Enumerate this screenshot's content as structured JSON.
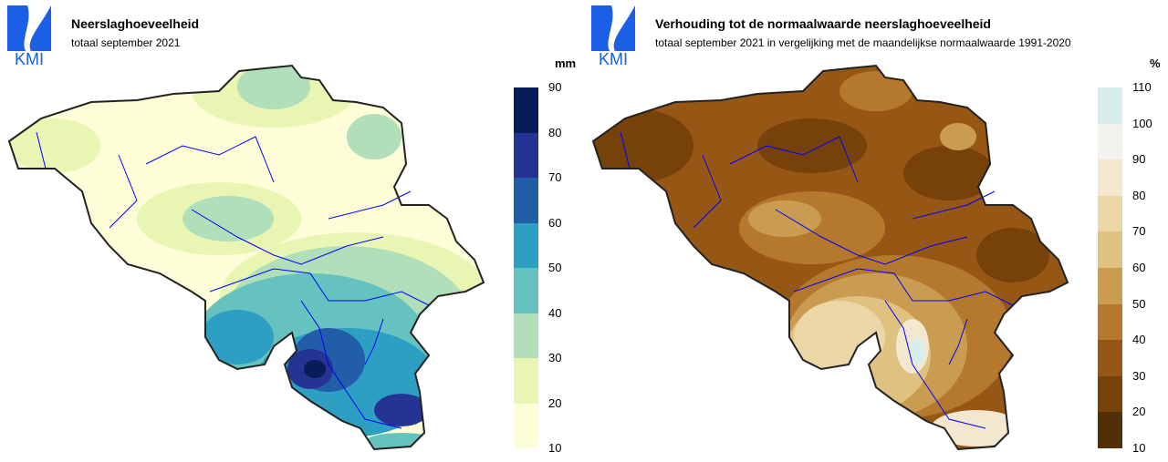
{
  "logo_text": "KMI",
  "left": {
    "title": "Neerslaghoeveelheid",
    "subtitle": "totaal september 2021",
    "unit": "mm",
    "legend": {
      "ticks": [
        "90",
        "80",
        "70",
        "60",
        "50",
        "40",
        "30",
        "20",
        "10"
      ],
      "colors": [
        "#081d58",
        "#253494",
        "#225ea8",
        "#2c9fc2",
        "#65c2bf",
        "#b1dfb9",
        "#e9f5b3",
        "#fdfed7"
      ]
    }
  },
  "right": {
    "title": "Verhouding tot de normaalwaarde neerslaghoeveelheid",
    "subtitle": "totaal september 2021 in vergelijking met de maandelijkse normaalwaarde 1991-2020",
    "unit": "%",
    "legend": {
      "ticks": [
        "110",
        "100",
        "90",
        "80",
        "70",
        "60",
        "50",
        "40",
        "30",
        "20",
        "10"
      ],
      "colors": [
        "#d8eeec",
        "#f3f2ee",
        "#f4e7cf",
        "#ebd7a6",
        "#dfc27f",
        "#c99c51",
        "#b5792d",
        "#965714",
        "#764209",
        "#532f05"
      ]
    }
  }
}
